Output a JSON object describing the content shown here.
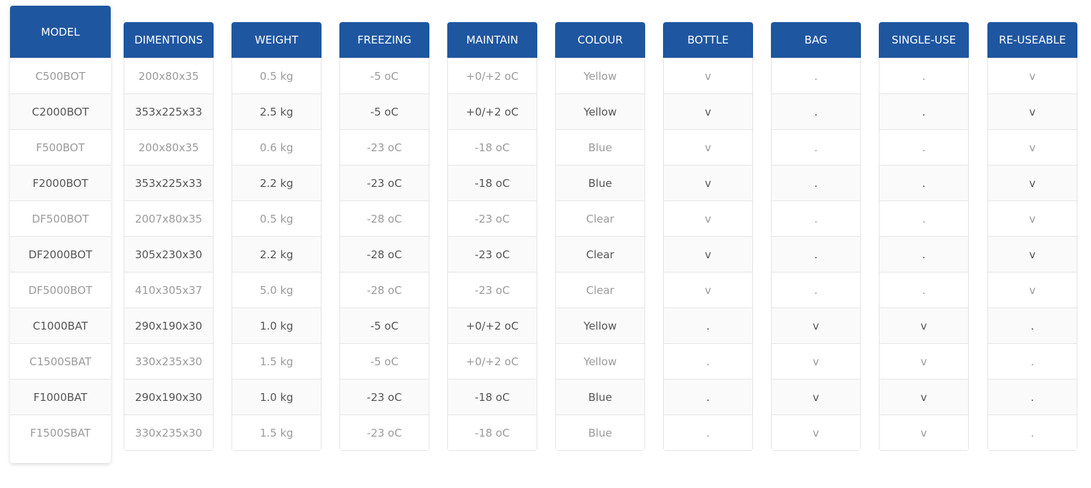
{
  "header_color": "#1f56a0",
  "columns": [
    {
      "key": "model",
      "label": "MODEL",
      "values": [
        "C500BOT",
        "C2000BOT",
        "F500BOT",
        "F2000BOT",
        "DF500BOT",
        "DF2000BOT",
        "DF5000BOT",
        "C1000BAT",
        "C1500SBAT",
        "F1000BAT",
        "F1500SBAT"
      ]
    },
    {
      "key": "dimentions",
      "label": "DIMENTIONS",
      "values": [
        "200x80x35",
        "353x225x33",
        "200x80x35",
        "353x225x33",
        "2007x80x35",
        "305x230x30",
        "410x305x37",
        "290x190x30",
        "330x235x30",
        "290x190x30",
        "330x235x30"
      ]
    },
    {
      "key": "weight",
      "label": "WEIGHT",
      "values": [
        "0.5 kg",
        "2.5 kg",
        "0.6 kg",
        "2.2 kg",
        "0.5 kg",
        "2.2 kg",
        "5.0 kg",
        "1.0 kg",
        "1.5 kg",
        "1.0 kg",
        "1.5 kg"
      ]
    },
    {
      "key": "freezing",
      "label": "FREEZING",
      "values": [
        "-5 oC",
        "-5 oC",
        "-23 oC",
        "-23 oC",
        "-28 oC",
        "-28 oC",
        "-28 oC",
        "-5 oC",
        "-5 oC",
        "-23 oC",
        "-23 oC"
      ]
    },
    {
      "key": "maintain",
      "label": "MAINTAIN",
      "values": [
        "+0/+2 oC",
        "+0/+2 oC",
        "-18 oC",
        "-18 oC",
        "-23 oC",
        "-23 oC",
        "-23 oC",
        "+0/+2 oC",
        "+0/+2 oC",
        "-18 oC",
        "-18 oC"
      ]
    },
    {
      "key": "colour",
      "label": "COLOUR",
      "values": [
        "Yellow",
        "Yellow",
        "Blue",
        "Blue",
        "Clear",
        "Clear",
        "Clear",
        "Yellow",
        "Yellow",
        "Blue",
        "Blue"
      ]
    },
    {
      "key": "bottle",
      "label": "BOTTLE",
      "values": [
        "v",
        "v",
        "v",
        "v",
        "v",
        "v",
        "v",
        ".",
        ".",
        ".",
        "."
      ]
    },
    {
      "key": "bag",
      "label": "BAG",
      "values": [
        ".",
        ".",
        ".",
        ".",
        ".",
        ".",
        ".",
        "v",
        "v",
        "v",
        "v"
      ]
    },
    {
      "key": "single_use",
      "label": "SINGLE-USE",
      "values": [
        ".",
        ".",
        ".",
        ".",
        ".",
        ".",
        ".",
        "v",
        "v",
        "v",
        "v"
      ]
    },
    {
      "key": "re_useable",
      "label": "RE-USEABLE",
      "values": [
        "v",
        "v",
        "v",
        "v",
        "v",
        "v",
        "v",
        ".",
        ".",
        ".",
        "."
      ]
    }
  ]
}
